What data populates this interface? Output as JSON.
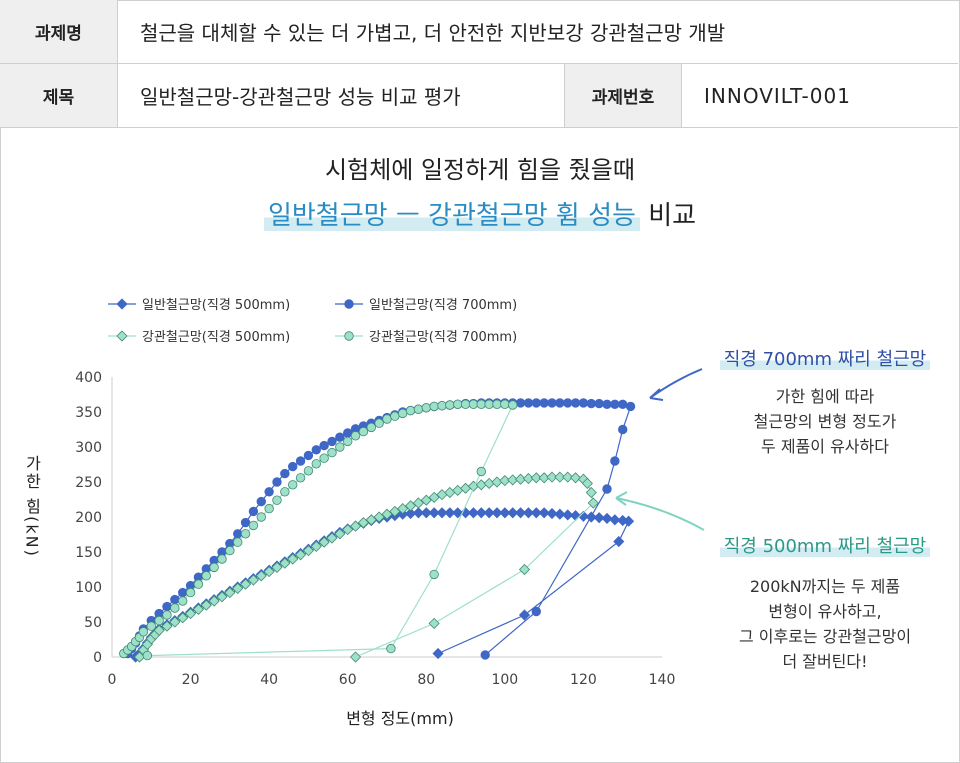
{
  "header": {
    "project_label": "과제명",
    "project_value": "철근을 대체할 수 있는 더 가볍고, 더 안전한 지반보강 강관철근망 개발",
    "subject_label": "제목",
    "subject_value": "일반철근망-강관철근망 성능 비교 평가",
    "number_label": "과제번호",
    "number_value": "INNOVILT-001"
  },
  "titles": {
    "line1": "시험체에 일정하게 힘을 줬을때",
    "line2_highlight": "일반철근망 ㅡ 강관철근망 휨 성능",
    "line2_tail": "비교"
  },
  "annotations": {
    "a700_title": "직경 700mm 짜리 철근망",
    "a700_lines": [
      "가한 힘에 따라",
      "철근망의 변형 정도가",
      "두 제품이 유사하다"
    ],
    "a500_title": "직경 500mm 짜리 철근망",
    "a500_lines": [
      "200kN까지는 두 제품",
      "변형이 유사하고,",
      "그 이후로는 강관철근망이",
      "더 잘버틴다!"
    ]
  },
  "colors": {
    "general": "#3f67c6",
    "steel": "#9ee0c8",
    "steel_edge": "#3f8a73",
    "arrow_700": "#3f67c6",
    "arrow_500": "#7fd3c0",
    "highlight": "#2a8cc2"
  },
  "chart_data": {
    "type": "scatter",
    "xlabel": "변형 정도(mm)",
    "ylabel": "가한 힘(kN)",
    "xlim": [
      0,
      140
    ],
    "ylim": [
      0,
      400
    ],
    "xticks": [
      0,
      20,
      40,
      60,
      80,
      100,
      120,
      140
    ],
    "yticks": [
      0,
      50,
      100,
      150,
      200,
      250,
      300,
      350,
      400
    ],
    "grid": false,
    "legend_position": "top-left",
    "series": [
      {
        "name": "일반철근망(직경 500mm)",
        "marker": "diamond",
        "fill": "general",
        "points": [
          [
            6,
            0
          ],
          [
            7,
            5
          ],
          [
            8,
            12
          ],
          [
            9,
            20
          ],
          [
            10,
            28
          ],
          [
            11,
            34
          ],
          [
            12,
            40
          ],
          [
            14,
            46
          ],
          [
            16,
            52
          ],
          [
            18,
            58
          ],
          [
            20,
            64
          ],
          [
            22,
            70
          ],
          [
            24,
            76
          ],
          [
            26,
            82
          ],
          [
            28,
            88
          ],
          [
            30,
            94
          ],
          [
            32,
            100
          ],
          [
            34,
            106
          ],
          [
            36,
            112
          ],
          [
            38,
            118
          ],
          [
            40,
            124
          ],
          [
            42,
            130
          ],
          [
            44,
            136
          ],
          [
            46,
            142
          ],
          [
            48,
            148
          ],
          [
            50,
            154
          ],
          [
            52,
            160
          ],
          [
            54,
            166
          ],
          [
            56,
            172
          ],
          [
            58,
            178
          ],
          [
            60,
            183
          ],
          [
            62,
            187
          ],
          [
            64,
            191
          ],
          [
            66,
            195
          ],
          [
            68,
            198
          ],
          [
            70,
            200
          ],
          [
            72,
            202
          ],
          [
            74,
            204
          ],
          [
            76,
            205
          ],
          [
            78,
            206
          ],
          [
            80,
            206
          ],
          [
            82,
            206
          ],
          [
            84,
            206
          ],
          [
            86,
            206
          ],
          [
            88,
            206
          ],
          [
            90,
            206
          ],
          [
            92,
            206
          ],
          [
            94,
            206
          ],
          [
            96,
            206
          ],
          [
            98,
            206
          ],
          [
            100,
            206
          ],
          [
            102,
            206
          ],
          [
            104,
            206
          ],
          [
            106,
            206
          ],
          [
            108,
            206
          ],
          [
            110,
            206
          ],
          [
            112,
            205
          ],
          [
            114,
            204
          ],
          [
            116,
            203
          ],
          [
            118,
            202
          ],
          [
            120,
            201
          ],
          [
            122,
            200
          ],
          [
            124,
            199
          ],
          [
            126,
            198
          ],
          [
            128,
            196
          ],
          [
            130,
            195
          ],
          [
            131.5,
            194
          ],
          [
            129,
            165
          ],
          [
            105,
            60
          ],
          [
            83,
            5
          ]
        ]
      },
      {
        "name": "일반철근망(직경 700mm)",
        "marker": "circle",
        "fill": "general",
        "points": [
          [
            4,
            5
          ],
          [
            5,
            12
          ],
          [
            6,
            20
          ],
          [
            7,
            30
          ],
          [
            8,
            40
          ],
          [
            10,
            52
          ],
          [
            12,
            62
          ],
          [
            14,
            72
          ],
          [
            16,
            82
          ],
          [
            18,
            92
          ],
          [
            20,
            102
          ],
          [
            22,
            114
          ],
          [
            24,
            126
          ],
          [
            26,
            138
          ],
          [
            28,
            150
          ],
          [
            30,
            162
          ],
          [
            32,
            176
          ],
          [
            34,
            192
          ],
          [
            36,
            208
          ],
          [
            38,
            222
          ],
          [
            40,
            236
          ],
          [
            42,
            250
          ],
          [
            44,
            262
          ],
          [
            46,
            272
          ],
          [
            48,
            280
          ],
          [
            50,
            288
          ],
          [
            52,
            296
          ],
          [
            54,
            302
          ],
          [
            56,
            308
          ],
          [
            58,
            314
          ],
          [
            60,
            320
          ],
          [
            62,
            326
          ],
          [
            64,
            330
          ],
          [
            66,
            334
          ],
          [
            68,
            338
          ],
          [
            70,
            342
          ],
          [
            72,
            346
          ],
          [
            74,
            350
          ],
          [
            76,
            352
          ],
          [
            78,
            354
          ],
          [
            80,
            356
          ],
          [
            82,
            358
          ],
          [
            84,
            359
          ],
          [
            86,
            360
          ],
          [
            88,
            361
          ],
          [
            90,
            362
          ],
          [
            92,
            362
          ],
          [
            94,
            363
          ],
          [
            96,
            363
          ],
          [
            98,
            363
          ],
          [
            100,
            363
          ],
          [
            102,
            363
          ],
          [
            104,
            363
          ],
          [
            106,
            363
          ],
          [
            108,
            363
          ],
          [
            110,
            363
          ],
          [
            112,
            363
          ],
          [
            114,
            363
          ],
          [
            116,
            363
          ],
          [
            118,
            363
          ],
          [
            120,
            363
          ],
          [
            122,
            362
          ],
          [
            124,
            362
          ],
          [
            126,
            361
          ],
          [
            128,
            361
          ],
          [
            130,
            361
          ],
          [
            132,
            358
          ],
          [
            130,
            325
          ],
          [
            128,
            280
          ],
          [
            126,
            240
          ],
          [
            108,
            65
          ],
          [
            95,
            3
          ]
        ]
      },
      {
        "name": "강관철근망(직경 500mm)",
        "marker": "diamond",
        "fill": "steel",
        "points": [
          [
            7,
            0
          ],
          [
            8,
            10
          ],
          [
            9,
            18
          ],
          [
            10,
            26
          ],
          [
            11,
            32
          ],
          [
            12,
            38
          ],
          [
            14,
            44
          ],
          [
            16,
            50
          ],
          [
            18,
            56
          ],
          [
            20,
            62
          ],
          [
            22,
            68
          ],
          [
            24,
            74
          ],
          [
            26,
            80
          ],
          [
            28,
            86
          ],
          [
            30,
            92
          ],
          [
            32,
            98
          ],
          [
            34,
            104
          ],
          [
            36,
            110
          ],
          [
            38,
            116
          ],
          [
            40,
            122
          ],
          [
            42,
            128
          ],
          [
            44,
            134
          ],
          [
            46,
            140
          ],
          [
            48,
            146
          ],
          [
            50,
            152
          ],
          [
            52,
            158
          ],
          [
            54,
            164
          ],
          [
            56,
            170
          ],
          [
            58,
            176
          ],
          [
            60,
            182
          ],
          [
            62,
            187
          ],
          [
            64,
            192
          ],
          [
            66,
            196
          ],
          [
            68,
            200
          ],
          [
            70,
            204
          ],
          [
            72,
            208
          ],
          [
            74,
            212
          ],
          [
            76,
            216
          ],
          [
            78,
            220
          ],
          [
            80,
            224
          ],
          [
            82,
            228
          ],
          [
            84,
            232
          ],
          [
            86,
            235
          ],
          [
            88,
            238
          ],
          [
            90,
            241
          ],
          [
            92,
            244
          ],
          [
            94,
            246
          ],
          [
            96,
            248
          ],
          [
            98,
            250
          ],
          [
            100,
            252
          ],
          [
            102,
            253
          ],
          [
            104,
            254
          ],
          [
            106,
            255
          ],
          [
            108,
            256
          ],
          [
            110,
            256
          ],
          [
            112,
            257
          ],
          [
            114,
            257
          ],
          [
            116,
            257
          ],
          [
            118,
            256
          ],
          [
            120,
            254
          ],
          [
            121,
            248
          ],
          [
            122,
            235
          ],
          [
            122.5,
            220
          ],
          [
            105,
            125
          ],
          [
            82,
            48
          ],
          [
            62,
            0
          ]
        ]
      },
      {
        "name": "강관철근망(직경 700mm)",
        "marker": "circle",
        "fill": "steel",
        "points": [
          [
            3,
            5
          ],
          [
            4,
            10
          ],
          [
            5,
            15
          ],
          [
            6,
            22
          ],
          [
            7,
            28
          ],
          [
            8,
            36
          ],
          [
            10,
            44
          ],
          [
            12,
            52
          ],
          [
            14,
            60
          ],
          [
            16,
            70
          ],
          [
            18,
            80
          ],
          [
            20,
            92
          ],
          [
            22,
            104
          ],
          [
            24,
            116
          ],
          [
            26,
            128
          ],
          [
            28,
            140
          ],
          [
            30,
            152
          ],
          [
            32,
            164
          ],
          [
            34,
            176
          ],
          [
            36,
            188
          ],
          [
            38,
            200
          ],
          [
            40,
            212
          ],
          [
            42,
            224
          ],
          [
            44,
            236
          ],
          [
            46,
            246
          ],
          [
            48,
            256
          ],
          [
            50,
            266
          ],
          [
            52,
            276
          ],
          [
            54,
            284
          ],
          [
            56,
            292
          ],
          [
            58,
            300
          ],
          [
            60,
            308
          ],
          [
            62,
            316
          ],
          [
            64,
            322
          ],
          [
            66,
            328
          ],
          [
            68,
            334
          ],
          [
            70,
            340
          ],
          [
            72,
            344
          ],
          [
            74,
            348
          ],
          [
            76,
            352
          ],
          [
            78,
            354
          ],
          [
            80,
            356
          ],
          [
            82,
            358
          ],
          [
            84,
            359
          ],
          [
            86,
            360
          ],
          [
            88,
            361
          ],
          [
            90,
            361
          ],
          [
            92,
            361
          ],
          [
            94,
            361
          ],
          [
            96,
            361
          ],
          [
            98,
            361
          ],
          [
            100,
            361
          ],
          [
            102,
            360
          ],
          [
            94,
            265
          ],
          [
            82,
            118
          ],
          [
            71,
            12
          ],
          [
            9,
            2
          ]
        ]
      }
    ]
  }
}
